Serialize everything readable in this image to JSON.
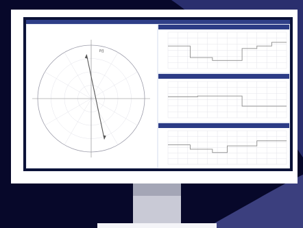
{
  "polar": {
    "title": "",
    "subtitle": "",
    "right_label": "",
    "vector_label": "P/J",
    "needle": {
      "tip_angle_deg": 96,
      "tip_r": 0.83,
      "tail_angle_deg": 288,
      "tail_r": 0.8
    }
  },
  "strips": [
    {
      "title": "",
      "right": "",
      "steps": [
        0.62,
        0.62,
        0.62,
        0.3,
        0.3,
        0.3,
        0.22,
        0.22,
        0.22,
        0.22,
        0.55,
        0.55,
        0.62,
        0.62,
        0.72,
        0.72
      ]
    },
    {
      "title": "",
      "right": "",
      "steps": [
        0.58,
        0.58,
        0.58,
        0.58,
        0.6,
        0.6,
        0.6,
        0.6,
        0.6,
        0.6,
        0.32,
        0.32,
        0.32,
        0.32,
        0.32,
        0.32
      ]
    },
    {
      "title": "",
      "right": "",
      "steps": [
        0.58,
        0.58,
        0.58,
        0.45,
        0.45,
        0.45,
        0.35,
        0.35,
        0.55,
        0.55,
        0.55,
        0.55,
        0.7,
        0.7,
        0.7,
        0.7
      ]
    }
  ],
  "colors": {
    "trace": "#8a8a8a",
    "grid": "#e3e3ea",
    "circle": "#9a9aa8",
    "needle": "#555555",
    "green": "#3a9a3a",
    "bar": "#2c3c86"
  }
}
